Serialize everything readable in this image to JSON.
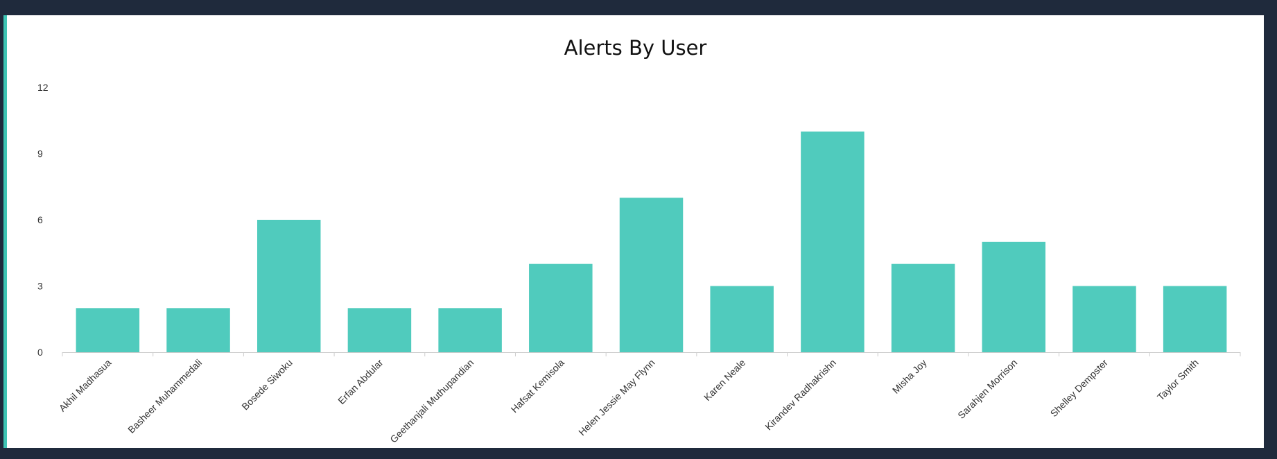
{
  "chart_data": {
    "type": "bar",
    "title": "Alerts By User",
    "xlabel": "",
    "ylabel": "",
    "ylim": [
      0,
      12
    ],
    "yticks": [
      0,
      3,
      6,
      9,
      12
    ],
    "grid": false,
    "categories": [
      "Akhil Madhasua",
      "Basheer Muhammedali",
      "Bosede Siwoku",
      "Erfan Abdular",
      "Geethanjali Muthupandian",
      "Hafsat Kemisola",
      "Helen Jessie May Flynn",
      "Karen Neale",
      "Kirandev Radhakrishn",
      "Misha Joy",
      "Sarahjen Morrison",
      "Shelley Dempster",
      "Taylor Smith"
    ],
    "values": [
      2,
      2,
      6,
      2,
      2,
      4,
      7,
      3,
      10,
      4,
      5,
      3,
      3
    ],
    "bar_color": "#50cbbd"
  }
}
